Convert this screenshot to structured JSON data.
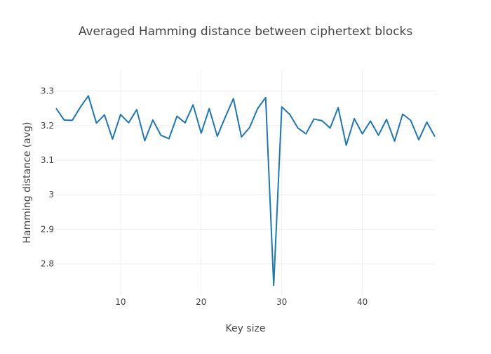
{
  "chart_data": {
    "type": "line",
    "title": "Averaged Hamming distance between ciphertext blocks",
    "xlabel": "Key size",
    "ylabel": "Hamming distance (avg)",
    "xlim": [
      2,
      49
    ],
    "ylim": [
      2.71,
      3.36
    ],
    "x_ticks": [
      10,
      20,
      30,
      40
    ],
    "y_ticks": [
      2.8,
      2.9,
      3,
      3.1,
      3.2,
      3.3
    ],
    "y_tick_labels": [
      "2.8",
      "2.9",
      "3",
      "3.1",
      "3.2",
      "3.3"
    ],
    "grid": true,
    "line_color": "#1f77b4",
    "series": [
      {
        "x": [
          2,
          3,
          4,
          5,
          6,
          7,
          8,
          9,
          10,
          11,
          12,
          13,
          14,
          15,
          16,
          17,
          18,
          19,
          20,
          21,
          22,
          23,
          24,
          25,
          26,
          27,
          28,
          29,
          30,
          31,
          32,
          33,
          34,
          35,
          36,
          37,
          38,
          39,
          40,
          41,
          42,
          43,
          44,
          45,
          46,
          47,
          48,
          49
        ],
        "values": [
          3.25,
          3.216,
          3.215,
          3.253,
          3.286,
          3.207,
          3.231,
          3.161,
          3.232,
          3.208,
          3.246,
          3.156,
          3.216,
          3.172,
          3.162,
          3.227,
          3.208,
          3.26,
          3.178,
          3.249,
          3.169,
          3.225,
          3.278,
          3.167,
          3.194,
          3.249,
          3.281,
          2.738,
          3.254,
          3.232,
          3.193,
          3.176,
          3.219,
          3.214,
          3.193,
          3.252,
          3.143,
          3.22,
          3.176,
          3.213,
          3.172,
          3.218,
          3.155,
          3.233,
          3.215,
          3.159,
          3.21,
          3.168
        ]
      }
    ]
  }
}
